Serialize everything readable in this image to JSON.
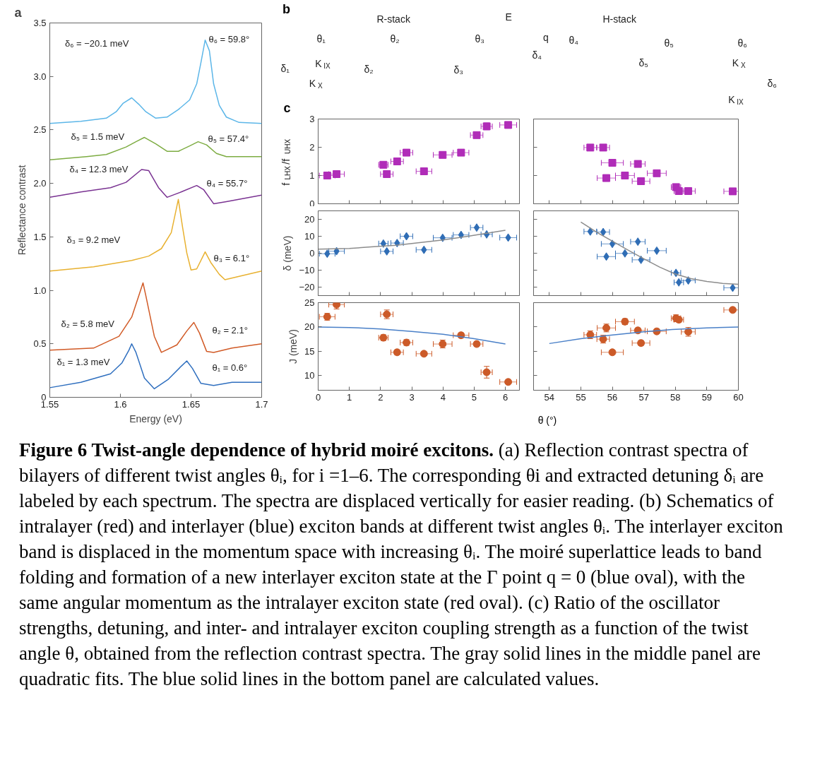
{
  "chart_data": [
    {
      "type": "line",
      "title": "a",
      "xlabel": "Energy (eV)",
      "ylabel": "Reflectance contrast",
      "xlim": [
        1.55,
        1.7
      ],
      "ylim": [
        0,
        3.5
      ],
      "xticks": [
        1.55,
        1.6,
        1.65,
        1.7
      ],
      "yticks": [
        0,
        0.5,
        {
          "value": 1,
          "label": "1.0"
        },
        1.5,
        {
          "value": 2,
          "label": "2.0"
        },
        2.5,
        {
          "value": 3,
          "label": "3.0"
        },
        3.5
      ],
      "series": [
        {
          "color": "#2f6fbf",
          "x": [
            1.55,
            1.572,
            1.593,
            1.601,
            1.606,
            1.608,
            1.611,
            1.617,
            1.624,
            1.634,
            1.643,
            1.647,
            1.651,
            1.657,
            1.666,
            1.679,
            1.7
          ],
          "values": [
            0.09,
            0.14,
            0.22,
            0.32,
            0.44,
            0.5,
            0.42,
            0.18,
            0.08,
            0.17,
            0.29,
            0.34,
            0.27,
            0.13,
            0.11,
            0.14,
            0.14
          ]
        },
        {
          "color": "#d15a26",
          "x": [
            1.55,
            1.581,
            1.599,
            1.608,
            1.613,
            1.616,
            1.618,
            1.624,
            1.629,
            1.64,
            1.647,
            1.652,
            1.656,
            1.661,
            1.666,
            1.679,
            1.7
          ],
          "values": [
            0.44,
            0.46,
            0.57,
            0.75,
            0.95,
            1.07,
            0.95,
            0.57,
            0.42,
            0.49,
            0.62,
            0.7,
            0.6,
            0.43,
            0.42,
            0.46,
            0.5
          ]
        },
        {
          "color": "#e8b130",
          "x": [
            1.55,
            1.581,
            1.608,
            1.62,
            1.629,
            1.636,
            1.641,
            1.644,
            1.647,
            1.65,
            1.654,
            1.66,
            1.664,
            1.67,
            1.674,
            1.7
          ],
          "values": [
            1.18,
            1.22,
            1.28,
            1.32,
            1.39,
            1.54,
            1.85,
            1.59,
            1.35,
            1.19,
            1.2,
            1.36,
            1.26,
            1.15,
            1.1,
            1.18
          ]
        },
        {
          "color": "#7a3392",
          "x": [
            1.55,
            1.572,
            1.593,
            1.604,
            1.615,
            1.62,
            1.627,
            1.633,
            1.643,
            1.654,
            1.659,
            1.666,
            1.675,
            1.7
          ],
          "values": [
            1.87,
            1.92,
            1.96,
            2.01,
            2.13,
            2.12,
            1.96,
            1.87,
            1.92,
            1.98,
            1.94,
            1.81,
            1.83,
            1.89
          ]
        },
        {
          "color": "#7dac42",
          "x": [
            1.55,
            1.576,
            1.59,
            1.604,
            1.611,
            1.617,
            1.625,
            1.633,
            1.641,
            1.649,
            1.655,
            1.661,
            1.668,
            1.675,
            1.7
          ],
          "values": [
            2.22,
            2.25,
            2.27,
            2.34,
            2.39,
            2.43,
            2.37,
            2.3,
            2.3,
            2.35,
            2.39,
            2.36,
            2.28,
            2.25,
            2.25
          ]
        },
        {
          "color": "#5cb6e8",
          "x": [
            1.55,
            1.572,
            1.59,
            1.597,
            1.602,
            1.608,
            1.613,
            1.618,
            1.625,
            1.633,
            1.641,
            1.649,
            1.654,
            1.657,
            1.66,
            1.663,
            1.666,
            1.67,
            1.675,
            1.684,
            1.7
          ],
          "values": [
            2.56,
            2.58,
            2.61,
            2.67,
            2.75,
            2.8,
            2.74,
            2.67,
            2.61,
            2.62,
            2.69,
            2.78,
            2.93,
            3.13,
            3.34,
            3.24,
            2.93,
            2.73,
            2.62,
            2.57,
            2.56
          ]
        }
      ],
      "annotations": [
        "δ₆ = −20.1 meV",
        "θ₆ = 59.8°",
        "δ₅ = 1.5 meV",
        "θ₅ = 57.4°",
        "δ₄ = 12.3 meV",
        "θ₄ = 55.7°",
        "δ₃ = 9.2 meV",
        "θ₃ = 6.1°",
        "δ₂ = 5.8 meV",
        "θ₂ = 2.1°",
        "δ₁ = 1.3 meV",
        "θ₁ = 0.6°"
      ]
    },
    {
      "type": "other",
      "title": "b",
      "annotations": [
        "R-stack",
        "E",
        "q",
        "H-stack",
        "θ₁",
        "θ₂",
        "θ₃",
        "θ₄",
        "θ₅",
        "θ₆",
        "δ₁",
        "δ₂",
        "δ₃",
        "δ₄",
        "δ₅",
        "δ₆",
        "K$_{IX}$",
        "K$_{X}$",
        "K$_{X}$",
        "K$_{IX}$"
      ]
    },
    {
      "type": "scatter",
      "title": "c",
      "ylabel": "f$_{LHX}$/f$_{UHX}$",
      "xlim": [
        0,
        6.45
      ],
      "ylim": [
        0,
        3
      ],
      "xticks": [
        0,
        1,
        2,
        3,
        4,
        5,
        6
      ],
      "yticks": [
        0,
        1,
        2,
        3
      ],
      "tick_labels": "y",
      "series": [
        {
          "marker": "square",
          "color": "#b02cb8",
          "x": [
            0.29,
            0.59,
            2.09,
            2.2,
            2.53,
            2.83,
            3.39,
            3.99,
            4.58,
            5.08,
            5.4,
            6.09
          ],
          "values": [
            1.0,
            1.05,
            1.38,
            1.05,
            1.5,
            1.81,
            1.15,
            1.73,
            1.81,
            2.43,
            2.74,
            2.79
          ],
          "xerrors": [
            0.25,
            0.25,
            0.15,
            0.2,
            0.2,
            0.2,
            0.25,
            0.3,
            0.25,
            0.2,
            0.18,
            0.27
          ],
          "errors": [
            null,
            null,
            null,
            null,
            null,
            null,
            null,
            null,
            null,
            null,
            0.12,
            0.1
          ]
        }
      ]
    },
    {
      "type": "scatter",
      "xlim": [
        53.5,
        60
      ],
      "ylim": [
        0,
        3
      ],
      "xticks": [
        54,
        55,
        56,
        57,
        58,
        59,
        60
      ],
      "yticks": [
        0,
        1,
        2,
        3
      ],
      "tick_labels": false,
      "series": [
        {
          "marker": "square",
          "color": "#b02cb8",
          "x": [
            55.3,
            55.71,
            56.0,
            56.81,
            55.81,
            56.4,
            56.91,
            57.41,
            58.02,
            58.11,
            58.41,
            59.82
          ],
          "values": [
            1.99,
            1.99,
            1.45,
            1.41,
            0.91,
            1.0,
            0.8,
            1.08,
            0.59,
            0.45,
            0.45,
            0.44
          ],
          "xerrors": [
            0.2,
            0.2,
            0.35,
            0.23,
            0.29,
            0.3,
            0.28,
            0.3,
            0.15,
            0.15,
            0.22,
            0.28
          ]
        }
      ]
    },
    {
      "type": "scatter",
      "ylabel": "δ (meV)",
      "xlim": [
        0,
        6.45
      ],
      "ylim": [
        -25,
        25
      ],
      "xticks": [
        0,
        1,
        2,
        3,
        4,
        5,
        6
      ],
      "yticks": [
        {
          "value": -20,
          "label": "−20"
        },
        {
          "value": -10,
          "label": "−10"
        },
        0,
        10,
        20
      ],
      "tick_labels": "y",
      "series": [
        {
          "marker": "diamond",
          "color": "#2f6db5",
          "x": [
            0.29,
            0.59,
            2.09,
            2.2,
            2.53,
            2.83,
            3.39,
            3.99,
            4.58,
            5.08,
            5.4,
            6.09
          ],
          "values": [
            -0.3,
            1.2,
            5.7,
            1.1,
            6.0,
            10.0,
            2.0,
            9.1,
            10.8,
            15.1,
            11.1,
            9.2
          ],
          "xerrors": [
            0.25,
            0.25,
            0.15,
            0.2,
            0.2,
            0.2,
            0.25,
            0.3,
            0.25,
            0.2,
            0.18,
            0.27
          ]
        },
        {
          "type": "line",
          "color": "#8c8c8c",
          "x": [
            0,
            1,
            1.7,
            2.5,
            3.2,
            4,
            4.8,
            6
          ],
          "values": [
            2.4,
            2.8,
            3.7,
            4.7,
            6.1,
            7.8,
            10.0,
            13.5
          ]
        }
      ]
    },
    {
      "type": "scatter",
      "xlim": [
        53.5,
        60
      ],
      "ylim": [
        -25,
        25
      ],
      "xticks": [
        54,
        55,
        56,
        57,
        58,
        59,
        60
      ],
      "yticks": [
        -20,
        -10,
        0,
        10,
        20
      ],
      "tick_labels": false,
      "series": [
        {
          "marker": "diamond",
          "color": "#2f6db5",
          "x": [
            55.3,
            55.71,
            56.0,
            56.81,
            55.81,
            56.4,
            56.91,
            57.41,
            58.02,
            58.11,
            58.41,
            59.82
          ],
          "values": [
            12.8,
            12.5,
            5.5,
            6.8,
            -2.0,
            -0.1,
            -3.9,
            1.5,
            -11.6,
            -17.2,
            -16.1,
            -20.4
          ],
          "xerrors": [
            0.2,
            0.2,
            0.35,
            0.23,
            0.29,
            0.3,
            0.28,
            0.3,
            0.15,
            0.15,
            0.22,
            0.28
          ]
        },
        {
          "type": "line",
          "color": "#8c8c8c",
          "x": [
            55,
            55.5,
            56,
            56.5,
            57,
            57.5,
            58,
            58.5,
            59,
            59.5,
            60
          ],
          "values": [
            18.4,
            12.4,
            7.1,
            1.8,
            -3.3,
            -8.2,
            -12.3,
            -15.0,
            -16.7,
            -17.8,
            -18.3
          ]
        }
      ]
    },
    {
      "type": "scatter",
      "ylabel": "J (meV)",
      "xlabel": "θ (°)",
      "xlim": [
        0,
        6.45
      ],
      "ylim": [
        7,
        25
      ],
      "xticks": [
        0,
        1,
        2,
        3,
        4,
        5,
        6
      ],
      "yticks": [
        10,
        15,
        20,
        25
      ],
      "series": [
        {
          "marker": "circle",
          "color": "#cc5a28",
          "x": [
            0.29,
            0.59,
            2.09,
            2.2,
            2.53,
            2.83,
            3.39,
            3.99,
            4.58,
            5.08,
            5.4,
            6.09
          ],
          "values": [
            22.1,
            24.6,
            17.8,
            22.6,
            14.8,
            16.8,
            14.5,
            16.5,
            18.3,
            16.5,
            10.7,
            8.7
          ],
          "xerrors": [
            0.25,
            0.25,
            0.15,
            0.2,
            0.2,
            0.2,
            0.25,
            0.3,
            0.25,
            0.2,
            0.18,
            0.27
          ],
          "errors": [
            0.7,
            0.9,
            0.6,
            0.9,
            0.5,
            0.6,
            0.4,
            0.8,
            0.5,
            0.5,
            1.2,
            0.4
          ]
        },
        {
          "type": "line",
          "color": "#4a80c8",
          "x": [
            0,
            1,
            2,
            3,
            4,
            5,
            6
          ],
          "values": [
            20.0,
            19.9,
            19.6,
            19.1,
            18.5,
            17.6,
            16.5
          ]
        }
      ]
    },
    {
      "type": "scatter",
      "xlim": [
        53.5,
        60
      ],
      "ylim": [
        7,
        25
      ],
      "xticks": [
        54,
        55,
        56,
        57,
        58,
        59,
        60
      ],
      "yticks": [
        10,
        15,
        20,
        25
      ],
      "tick_labels": "x",
      "series": [
        {
          "marker": "circle",
          "color": "#cc5a28",
          "x": [
            55.3,
            55.71,
            55.81,
            56.0,
            56.4,
            56.81,
            56.91,
            57.41,
            58.02,
            58.11,
            58.41,
            59.82
          ],
          "values": [
            18.4,
            17.5,
            19.8,
            14.8,
            21.1,
            19.3,
            16.7,
            19.1,
            21.8,
            21.5,
            19.0,
            23.5
          ],
          "xerrors": [
            0.2,
            0.2,
            0.29,
            0.35,
            0.3,
            0.23,
            0.28,
            0.3,
            0.15,
            0.15,
            0.22,
            0.28
          ],
          "errors": [
            0.8,
            0.8,
            0.8,
            0.4,
            0.6,
            0.5,
            0.5,
            0.5,
            0.7,
            0.5,
            0.9,
            0.4
          ]
        },
        {
          "type": "line",
          "color": "#4a80c8",
          "x": [
            54,
            55,
            55.9,
            57,
            57.9,
            59,
            60
          ],
          "values": [
            16.6,
            17.6,
            18.3,
            19.0,
            19.5,
            19.8,
            20.0
          ]
        }
      ]
    },
    {
      "type": "other",
      "title": "Figure 6 Twist-angle dependence of hybrid moiré excitons.",
      "annotations": [
        "(a) Reflection contrast spectra of bilayers of different twist angles θᵢ, for i =1–6. The corresponding θi and extracted detuning δᵢ are labeled by each spectrum. The spectra are displaced vertically for easier reading. (b) Schematics of intralayer (red) and interlayer (blue) exciton bands at different twist angles θᵢ. The interlayer exciton band is displaced in the momentum space with increasing θᵢ. The moiré superlattice leads to band folding and formation of a new interlayer exciton state at the Γ point q = 0 (blue oval), with the same angular momentum as the intralayer exciton state (red oval). (c) Ratio of the oscillator strengths, detuning, and inter- and intralayer exciton coupling strength as a function of the twist angle θ, obtained from the reflection contrast spectra. The gray solid lines in the middle panel are quadratic fits. The blue solid lines in the bottom panel are calculated values."
      ]
    }
  ]
}
